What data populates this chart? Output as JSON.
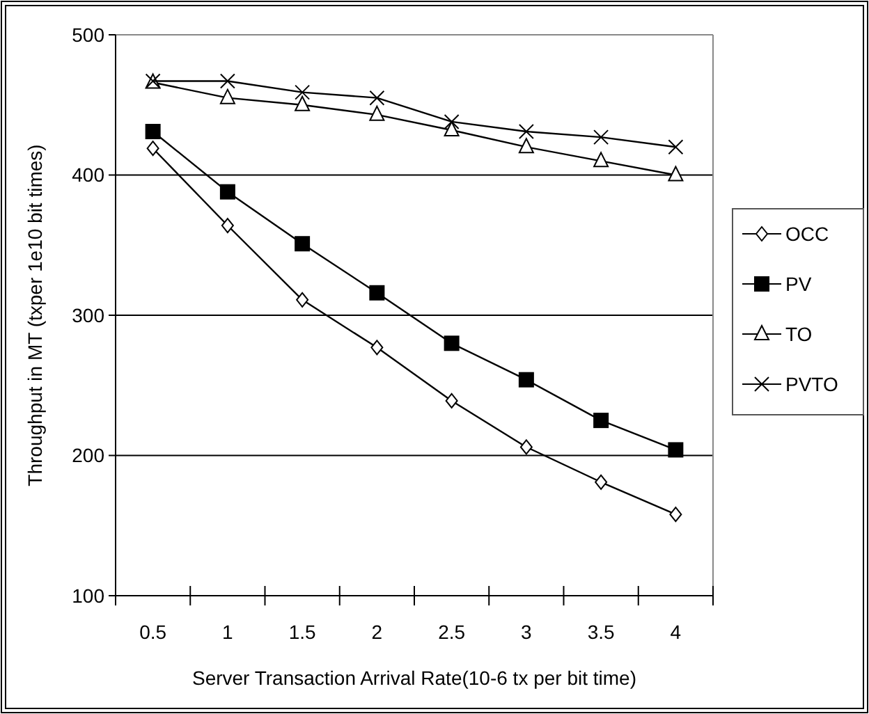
{
  "chart_data": {
    "type": "line",
    "xlabel": "Server Transaction Arrival Rate(10-6 tx per bit time)",
    "ylabel": "Throughput in MT (txper 1e10 bit times)",
    "categories": [
      "0.5",
      "1",
      "1.5",
      "2",
      "2.5",
      "3",
      "3.5",
      "4"
    ],
    "ylim": [
      100,
      500
    ],
    "yticks": [
      100,
      200,
      300,
      400,
      500
    ],
    "grid": "y",
    "legend": "right",
    "series": [
      {
        "name": "OCC",
        "color": "#000000",
        "marker": "diamond",
        "values": [
          419,
          364,
          311,
          277,
          239,
          206,
          181,
          158
        ]
      },
      {
        "name": "PV",
        "color": "#000000",
        "marker": "square",
        "values": [
          431,
          388,
          351,
          316,
          280,
          254,
          225,
          204
        ]
      },
      {
        "name": "TO",
        "color": "#000000",
        "marker": "triangle",
        "values": [
          466,
          455,
          450,
          443,
          432,
          420,
          410,
          400
        ]
      },
      {
        "name": "PVTO",
        "color": "#000000",
        "marker": "cross",
        "values": [
          467,
          467,
          459,
          455,
          438,
          431,
          427,
          420
        ]
      }
    ]
  }
}
